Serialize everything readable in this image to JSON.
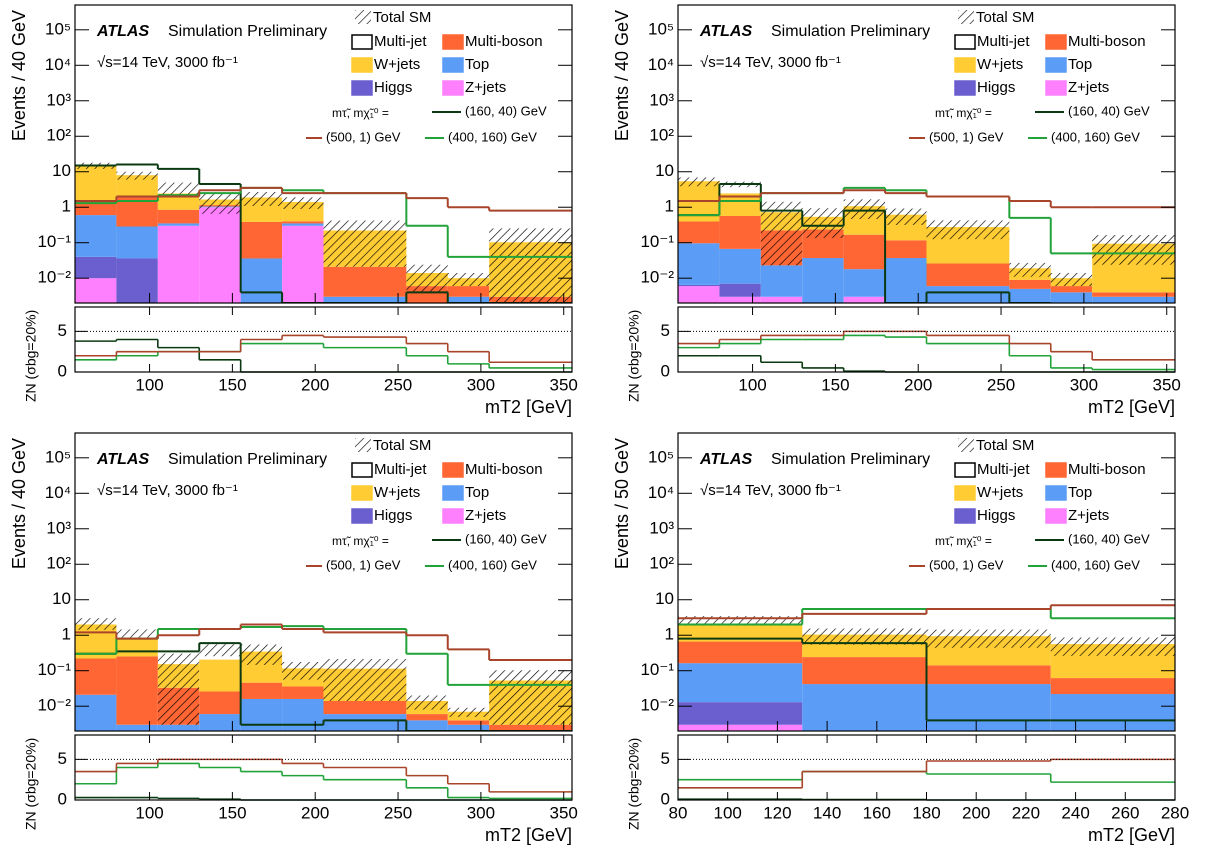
{
  "chart_data": [
    {
      "type": "histogram",
      "atlas": "ATLAS",
      "label": "Simulation Preliminary",
      "energy": "√s=14 TeV, 3000 fb⁻¹",
      "y_label": "Events / 40 GeV",
      "x_label": "mT2 [GeV]",
      "zn_label": "ZN (σbg=20%)",
      "signal_header": "mτ̃, mχ̃₁⁰ =",
      "bins": [
        55,
        80,
        105,
        130,
        155,
        180,
        205,
        255,
        280,
        305,
        355
      ],
      "xlim": [
        55,
        355
      ],
      "xticks": [
        100,
        150,
        200,
        250,
        300,
        350
      ],
      "ylim": [
        0.002,
        500000
      ],
      "yticks": [
        {
          "value": 0.01,
          "label": "10⁻²"
        },
        {
          "value": 0.1,
          "label": "10⁻¹"
        },
        1,
        10,
        {
          "value": 100,
          "label": "10²"
        },
        {
          "value": 1000,
          "label": "10³"
        },
        {
          "value": 10000,
          "label": "10⁴"
        },
        {
          "value": 100000,
          "label": "10⁵"
        }
      ],
      "zn_ylim": [
        0,
        8
      ],
      "zn_yticks": [
        0,
        5
      ],
      "zn_reference": 5,
      "series": [
        {
          "name": "Z+jets",
          "color": "#ff80ff",
          "values": [
            0.01,
            0.001,
            0.3,
            1.0,
            0.001,
            0.3,
            0.001,
            0.001,
            0.001,
            0.001
          ]
        },
        {
          "name": "Higgs",
          "color": "#6b5fcf",
          "values": [
            0.03,
            0.035,
            0,
            0,
            0,
            0,
            0,
            0,
            0,
            0
          ]
        },
        {
          "name": "Top",
          "color": "#5b9cf6",
          "values": [
            0.56,
            0.25,
            0.05,
            0.05,
            0.035,
            0.05,
            0.002,
            0.001,
            0.002,
            0.001
          ]
        },
        {
          "name": "Multi-boson",
          "color": "#ff6633",
          "values": [
            1.0,
            1.7,
            0.5,
            0.1,
            0.35,
            0.05,
            0.018,
            0.004,
            0.003,
            0.001
          ]
        },
        {
          "name": "W+jets",
          "color": "#ffcc33",
          "values": [
            13.4,
            6.0,
            1.6,
            0.5,
            1.5,
            1.0,
            0.2,
            0.008,
            0.004,
            0.1
          ]
        },
        {
          "name": "Multi-jet",
          "color": "#ffffff",
          "values": [
            0,
            0,
            1.0,
            0,
            0,
            0,
            0,
            0,
            0,
            0
          ]
        }
      ],
      "uncertainty": {
        "name": "Total SM",
        "values": [
          3,
          2,
          1.5,
          1.0,
          0.8,
          0.5,
          0.2,
          0.01,
          0.004,
          0.15
        ]
      },
      "signals": [
        {
          "name": "(160, 40) GeV",
          "color": "#0b3a12",
          "values": [
            15,
            16,
            12,
            4.5,
            0.004,
            0.002,
            0.002,
            0.004,
            0.002,
            0.002
          ],
          "zn": [
            3.8,
            4.0,
            3.0,
            1.5,
            0,
            0,
            0,
            0,
            0,
            0
          ]
        },
        {
          "name": "(400, 160) GeV",
          "color": "#22a33a",
          "values": [
            1.3,
            1.5,
            2.2,
            2.5,
            3.5,
            3.0,
            2.5,
            0.3,
            0.04,
            0.04
          ],
          "zn": [
            1.5,
            2,
            2.5,
            2.5,
            3.5,
            3.5,
            3,
            2,
            1,
            0.5
          ]
        },
        {
          "name": "(500, 1) GeV",
          "color": "#a8442a",
          "values": [
            1.5,
            2,
            2,
            3,
            3.5,
            2.5,
            2.5,
            1.8,
            1,
            0.8
          ],
          "zn": [
            2,
            2.5,
            2.5,
            2.5,
            4,
            4.5,
            4.3,
            3.5,
            2.5,
            1.2
          ]
        }
      ]
    },
    {
      "type": "histogram",
      "atlas": "ATLAS",
      "label": "Simulation Preliminary",
      "energy": "√s=14 TeV, 3000 fb⁻¹",
      "y_label": "Events / 40 GeV",
      "x_label": "mT2 [GeV]",
      "zn_label": "ZN (σbg=20%)",
      "signal_header": "mτ̃, mχ̃₁⁰ =",
      "bins": [
        55,
        80,
        105,
        130,
        155,
        180,
        205,
        255,
        280,
        305,
        355
      ],
      "xlim": [
        55,
        355
      ],
      "xticks": [
        100,
        150,
        200,
        250,
        300,
        350
      ],
      "ylim": [
        0.002,
        500000
      ],
      "yticks": [
        {
          "value": 0.01,
          "label": "10⁻²"
        },
        {
          "value": 0.1,
          "label": "10⁻¹"
        },
        1,
        10,
        {
          "value": 100,
          "label": "10²"
        },
        {
          "value": 1000,
          "label": "10³"
        },
        {
          "value": 10000,
          "label": "10⁴"
        },
        {
          "value": 100000,
          "label": "10⁵"
        }
      ],
      "zn_ylim": [
        0,
        8
      ],
      "zn_yticks": [
        0,
        5
      ],
      "zn_reference": 5,
      "series": [
        {
          "name": "Z+jets",
          "color": "#ff80ff",
          "values": [
            0.006,
            0.003,
            0.003,
            0.002,
            0.003,
            0.002,
            0.002,
            0.002,
            0.002,
            0.002
          ]
        },
        {
          "name": "Higgs",
          "color": "#6b5fcf",
          "values": [
            0.0005,
            0.004,
            0,
            0,
            0,
            0,
            0,
            0,
            0,
            0
          ]
        },
        {
          "name": "Top",
          "color": "#5b9cf6",
          "values": [
            0.09,
            0.06,
            0.02,
            0.035,
            0.015,
            0.035,
            0.004,
            0.003,
            0.002,
            0.001
          ]
        },
        {
          "name": "Multi-boson",
          "color": "#ff6633",
          "values": [
            0.3,
            0.5,
            0.2,
            0.2,
            0.15,
            0.08,
            0.02,
            0.004,
            0.002,
            0.001
          ]
        },
        {
          "name": "W+jets",
          "color": "#ffcc33",
          "values": [
            5,
            1.9,
            0.5,
            0.3,
            0.9,
            0.5,
            0.25,
            0.01,
            0.004,
            0.09
          ]
        },
        {
          "name": "Multi-jet",
          "color": "#ffffff",
          "values": [
            0,
            2,
            0,
            0,
            0,
            0,
            0,
            0,
            0,
            0
          ]
        }
      ],
      "uncertainty": {
        "name": "Total SM",
        "values": [
          1.5,
          0.8,
          0.7,
          0.4,
          0.6,
          0.3,
          0.15,
          0.008,
          0.004,
          0.07
        ]
      },
      "signals": [
        {
          "name": "(160, 40) GeV",
          "color": "#0b3a12",
          "values": [
            0.6,
            4.5,
            0.8,
            0.3,
            0.8,
            0.002,
            0.004,
            0.002,
            0.0015,
            0.0015
          ],
          "zn": [
            2,
            2,
            1.2,
            0.5,
            0.1,
            0,
            0,
            0,
            0,
            0
          ]
        },
        {
          "name": "(400, 160) GeV",
          "color": "#22a33a",
          "values": [
            0.6,
            1.5,
            2.5,
            2.5,
            3.5,
            3,
            2,
            0.5,
            0.05,
            0.05
          ],
          "zn": [
            3,
            3.5,
            4,
            4,
            4.5,
            4.3,
            3.5,
            2,
            0.5,
            0.3
          ]
        },
        {
          "name": "(500, 1) GeV",
          "color": "#a8442a",
          "values": [
            1.5,
            2,
            2.5,
            2.5,
            3,
            2.5,
            2,
            1.5,
            1,
            1
          ],
          "zn": [
            3.5,
            4,
            4.5,
            4.5,
            5,
            5,
            4.5,
            3.5,
            2.5,
            1.5
          ]
        }
      ]
    },
    {
      "type": "histogram",
      "atlas": "ATLAS",
      "label": "Simulation Preliminary",
      "energy": "√s=14 TeV, 3000 fb⁻¹",
      "y_label": "Events / 40 GeV",
      "x_label": "mT2 [GeV]",
      "zn_label": "ZN (σbg=20%)",
      "signal_header": "mτ̃, mχ̃₁⁰ =",
      "bins": [
        55,
        80,
        105,
        130,
        155,
        180,
        205,
        255,
        280,
        305,
        355
      ],
      "xlim": [
        55,
        355
      ],
      "xticks": [
        100,
        150,
        200,
        250,
        300,
        350
      ],
      "ylim": [
        0.002,
        500000
      ],
      "yticks": [
        {
          "value": 0.01,
          "label": "10⁻²"
        },
        {
          "value": 0.1,
          "label": "10⁻¹"
        },
        1,
        10,
        {
          "value": 100,
          "label": "10²"
        },
        {
          "value": 1000,
          "label": "10³"
        },
        {
          "value": 10000,
          "label": "10⁴"
        },
        {
          "value": 100000,
          "label": "10⁵"
        }
      ],
      "zn_ylim": [
        0,
        8
      ],
      "zn_yticks": [
        0,
        5
      ],
      "zn_reference": 5,
      "series": [
        {
          "name": "Z+jets",
          "color": "#ff80ff",
          "values": [
            0.001,
            0.001,
            0.001,
            0.001,
            0.001,
            0.001,
            0.001,
            0.001,
            0.001,
            0.001
          ]
        },
        {
          "name": "Higgs",
          "color": "#6b5fcf",
          "values": [
            0,
            0,
            0,
            0,
            0,
            0,
            0,
            0,
            0,
            0
          ]
        },
        {
          "name": "Top",
          "color": "#5b9cf6",
          "values": [
            0.02,
            0.002,
            0.002,
            0.005,
            0.015,
            0.015,
            0.005,
            0.003,
            0.002,
            0.001
          ]
        },
        {
          "name": "Multi-boson",
          "color": "#ff6633",
          "values": [
            0.2,
            0.25,
            0.03,
            0.02,
            0.03,
            0.02,
            0.008,
            0.002,
            0.001,
            0.001
          ]
        },
        {
          "name": "W+jets",
          "color": "#ffcc33",
          "values": [
            1.8,
            0.6,
            0.12,
            0.18,
            0.3,
            0.08,
            0.1,
            0.008,
            0.003,
            0.05
          ]
        },
        {
          "name": "Multi-jet",
          "color": "#ffffff",
          "values": [
            0.2,
            0.3,
            0,
            0.2,
            0,
            0,
            0,
            0,
            0,
            0
          ]
        }
      ],
      "uncertainty": {
        "name": "Total SM",
        "values": [
          0.8,
          0.3,
          0.15,
          0.15,
          0.2,
          0.06,
          0.1,
          0.006,
          0.002,
          0.05
        ]
      },
      "signals": [
        {
          "name": "(160, 40) GeV",
          "color": "#0b3a12",
          "values": [
            0.3,
            0.35,
            0.35,
            0.6,
            0.003,
            0.003,
            0.004,
            0.002,
            0.002,
            0.002
          ],
          "zn": [
            0.3,
            0.3,
            0.2,
            0.1,
            0,
            0,
            0,
            0,
            0,
            0
          ]
        },
        {
          "name": "(400, 160) GeV",
          "color": "#22a33a",
          "values": [
            0.3,
            0.8,
            1.5,
            1.5,
            1.7,
            1.8,
            1.5,
            0.3,
            0.04,
            0.04
          ],
          "zn": [
            2,
            4,
            4.5,
            4,
            3.5,
            3,
            2.5,
            1.5,
            0.3,
            0.2
          ]
        },
        {
          "name": "(500, 1) GeV",
          "color": "#a8442a",
          "values": [
            1.2,
            0.8,
            1.0,
            1.5,
            2,
            1.5,
            1.2,
            1,
            0.4,
            0.2
          ],
          "zn": [
            3.5,
            4.5,
            5,
            5,
            5,
            4.5,
            4,
            3,
            2,
            1
          ]
        }
      ]
    },
    {
      "type": "histogram",
      "atlas": "ATLAS",
      "label": "Simulation Preliminary",
      "energy": "√s=14 TeV, 3000 fb⁻¹",
      "y_label": "Events / 50 GeV",
      "x_label": "mT2 [GeV]",
      "zn_label": "ZN (σbg=20%)",
      "signal_header": "mτ̃, mχ̃₁⁰ =",
      "bins": [
        80,
        130,
        180,
        230,
        280
      ],
      "xlim": [
        80,
        280
      ],
      "xticks": [
        80,
        100,
        120,
        140,
        160,
        180,
        200,
        220,
        240,
        260,
        280
      ],
      "ylim": [
        0.002,
        500000
      ],
      "yticks": [
        {
          "value": 0.01,
          "label": "10⁻²"
        },
        {
          "value": 0.1,
          "label": "10⁻¹"
        },
        1,
        10,
        {
          "value": 100,
          "label": "10²"
        },
        {
          "value": 1000,
          "label": "10³"
        },
        {
          "value": 10000,
          "label": "10⁴"
        },
        {
          "value": 100000,
          "label": "10⁵"
        }
      ],
      "zn_ylim": [
        0,
        8
      ],
      "zn_yticks": [
        0,
        5
      ],
      "zn_reference": 5,
      "series": [
        {
          "name": "Z+jets",
          "color": "#ff80ff",
          "values": [
            0.003,
            0.002,
            0.002,
            0.002
          ]
        },
        {
          "name": "Higgs",
          "color": "#6b5fcf",
          "values": [
            0.01,
            0,
            0,
            0
          ]
        },
        {
          "name": "Top",
          "color": "#5b9cf6",
          "values": [
            0.15,
            0.04,
            0.04,
            0.02
          ]
        },
        {
          "name": "Multi-boson",
          "color": "#ff6633",
          "values": [
            0.5,
            0.2,
            0.1,
            0.04
          ]
        },
        {
          "name": "W+jets",
          "color": "#ffcc33",
          "values": [
            1.5,
            0.8,
            0.8,
            0.5
          ]
        },
        {
          "name": "Multi-jet",
          "color": "#ffffff",
          "values": [
            0.5,
            0,
            0,
            0
          ]
        }
      ],
      "uncertainty": {
        "name": "Total SM",
        "values": [
          0.8,
          0.5,
          0.5,
          0.3
        ]
      },
      "signals": [
        {
          "name": "(160, 40) GeV",
          "color": "#0b3a12",
          "values": [
            0.8,
            0.6,
            0.004,
            0.004
          ],
          "zn": [
            0.1,
            0.05,
            0,
            0
          ]
        },
        {
          "name": "(400, 160) GeV",
          "color": "#22a33a",
          "values": [
            2,
            5.5,
            5.5,
            3
          ],
          "zn": [
            2.5,
            3.5,
            3.2,
            2.2
          ]
        },
        {
          "name": "(500, 1) GeV",
          "color": "#a8442a",
          "values": [
            3,
            4,
            5.5,
            7
          ],
          "zn": [
            1.5,
            3.5,
            4.8,
            5
          ]
        }
      ]
    }
  ]
}
